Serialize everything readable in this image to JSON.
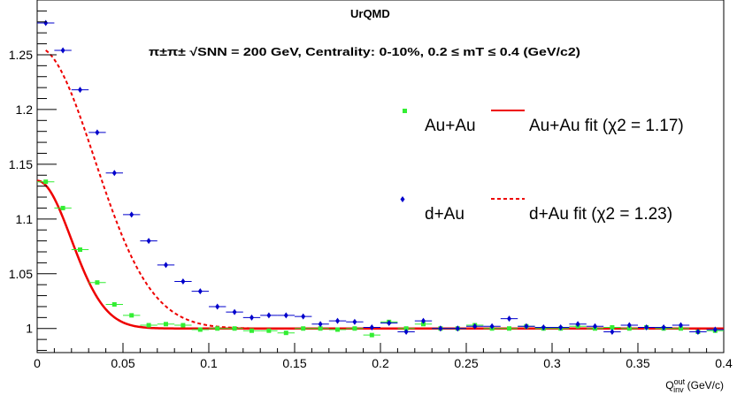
{
  "chart_data": {
    "type": "scatter",
    "title": "UrQMD",
    "subtitle": "π±π± √SNN = 200 GeV, Centrality: 0-10%, 0.2 ≤ mT ≤ 0.4 (GeV/c2)",
    "xlabel": "Q_inv^out (GeV/c)",
    "xlabel_main": "Q",
    "xlabel_sup": "out",
    "xlabel_sub": "inv",
    "xlabel_unit": "(GeV/c)",
    "ylabel": "",
    "xlim": [
      0,
      0.4
    ],
    "ylim": [
      0.978,
      1.3
    ],
    "x_ticks": [
      "0",
      "0.05",
      "0.1",
      "0.15",
      "0.2",
      "0.25",
      "0.3",
      "0.35",
      "0.4"
    ],
    "y_ticks": [
      "1",
      "1.05",
      "1.1",
      "1.15",
      "1.2",
      "1.25"
    ],
    "grid": false,
    "legend": [
      {
        "label": "Au+Au",
        "marker": "square",
        "color": "#33ee33"
      },
      {
        "label": "d+Au",
        "marker": "diamond",
        "color": "#0000cc"
      },
      {
        "label": "Au+Au fit (χ2 = 1.17)",
        "line": "solid",
        "color": "#ee0000"
      },
      {
        "label": "d+Au fit (χ2 = 1.23)",
        "line": "dashed",
        "color": "#ee0000"
      }
    ],
    "series": [
      {
        "name": "Au+Au",
        "color": "#33ee33",
        "x": [
          0.005,
          0.015,
          0.025,
          0.035,
          0.045,
          0.055,
          0.065,
          0.075,
          0.085,
          0.095,
          0.105,
          0.115,
          0.125,
          0.135,
          0.145,
          0.155,
          0.165,
          0.175,
          0.185,
          0.195,
          0.205,
          0.215,
          0.225,
          0.235,
          0.245,
          0.255,
          0.265,
          0.275,
          0.285,
          0.295,
          0.305,
          0.315,
          0.325,
          0.335,
          0.345,
          0.355,
          0.365,
          0.375,
          0.385,
          0.395
        ],
        "y": [
          1.134,
          1.11,
          1.072,
          1.042,
          1.022,
          1.012,
          1.003,
          1.004,
          1.003,
          0.999,
          1.0,
          1.0,
          0.998,
          0.998,
          0.996,
          1.0,
          1.0,
          0.999,
          1.0,
          0.994,
          1.006,
          1.0,
          1.004,
          1.0,
          1.0,
          1.003,
          1.0,
          1.0,
          1.002,
          1.0,
          1.0,
          1.002,
          1.0,
          1.001,
          1.0,
          1.001,
          1.0,
          1.0,
          0.997,
          0.998
        ]
      },
      {
        "name": "d+Au",
        "color": "#0000cc",
        "x": [
          0.005,
          0.015,
          0.025,
          0.035,
          0.045,
          0.055,
          0.065,
          0.075,
          0.085,
          0.095,
          0.105,
          0.115,
          0.125,
          0.135,
          0.145,
          0.155,
          0.165,
          0.175,
          0.185,
          0.195,
          0.205,
          0.215,
          0.225,
          0.235,
          0.245,
          0.255,
          0.265,
          0.275,
          0.285,
          0.295,
          0.305,
          0.315,
          0.325,
          0.335,
          0.345,
          0.355,
          0.365,
          0.375,
          0.385,
          0.395
        ],
        "y": [
          1.279,
          1.254,
          1.218,
          1.179,
          1.142,
          1.104,
          1.08,
          1.058,
          1.043,
          1.034,
          1.02,
          1.015,
          1.01,
          1.012,
          1.012,
          1.011,
          1.004,
          1.007,
          1.006,
          1.001,
          1.005,
          0.997,
          1.007,
          1.0,
          1.0,
          1.002,
          1.002,
          1.009,
          1.002,
          1.001,
          1.001,
          1.004,
          1.002,
          0.997,
          1.003,
          1.001,
          1.001,
          1.003,
          0.997,
          0.999
        ]
      }
    ],
    "fits": [
      {
        "name": "Au+Au fit",
        "style": "solid",
        "color": "#ee0000",
        "x_start": 0.0,
        "amplitude": 0.135,
        "width": 0.028,
        "baseline": 1.0
      },
      {
        "name": "d+Au fit",
        "style": "dashed",
        "color": "#ee0000",
        "x_start": 0.005,
        "amplitude": 0.257,
        "width": 0.047,
        "baseline": 1.0
      }
    ]
  }
}
